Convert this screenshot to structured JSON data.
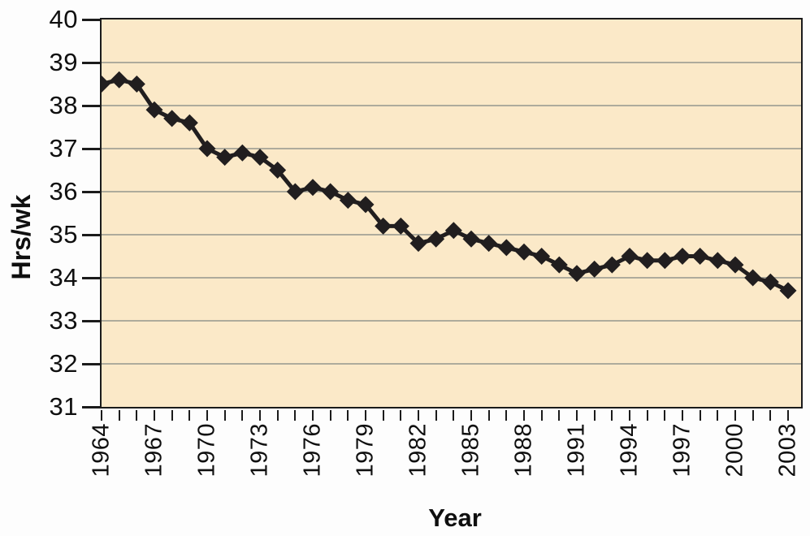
{
  "figure": {
    "ylabel": "Hrs/wk",
    "xlabel": "Year"
  },
  "chart_data": {
    "type": "line",
    "title": "",
    "ylabel": "Hrs/wk",
    "xlabel": "Year",
    "ylim": [
      31,
      40
    ],
    "xlim": [
      1964,
      2003
    ],
    "grid": "horizontal",
    "legend": "none",
    "marker": "diamond",
    "y_ticks": [
      40,
      39,
      38,
      37,
      36,
      35,
      34,
      33,
      32,
      31
    ],
    "y_gridlines": [
      39,
      38,
      37,
      36,
      35,
      34,
      33,
      32
    ],
    "x_tick_step": 1,
    "x_labeled_ticks": [
      1964,
      1967,
      1970,
      1973,
      1976,
      1979,
      1982,
      1985,
      1988,
      1991,
      1994,
      1997,
      2000,
      2003
    ],
    "x": [
      1964,
      1965,
      1966,
      1967,
      1968,
      1969,
      1970,
      1971,
      1972,
      1973,
      1974,
      1975,
      1976,
      1977,
      1978,
      1979,
      1980,
      1981,
      1982,
      1983,
      1984,
      1985,
      1986,
      1987,
      1988,
      1989,
      1990,
      1991,
      1992,
      1993,
      1994,
      1995,
      1996,
      1997,
      1998,
      1999,
      2000,
      2001,
      2002,
      2003
    ],
    "values": [
      38.5,
      38.6,
      38.5,
      37.9,
      37.7,
      37.6,
      37.0,
      36.8,
      36.9,
      36.8,
      36.5,
      36.0,
      36.1,
      36.0,
      35.8,
      35.7,
      35.2,
      35.2,
      34.8,
      34.9,
      35.1,
      34.9,
      34.8,
      34.7,
      34.6,
      34.5,
      34.3,
      34.1,
      34.2,
      34.3,
      34.5,
      34.4,
      34.4,
      34.5,
      34.5,
      34.4,
      34.3,
      34.0,
      33.9,
      33.7
    ],
    "colors": {
      "line": "#211e1f",
      "marker": "#211e1f",
      "plot_bg": "#fbe9c8",
      "grid": "#a3a296",
      "axis": "#1b1b1b",
      "text": "#0f0f0f",
      "page_bg": "#fdfdfd"
    }
  }
}
